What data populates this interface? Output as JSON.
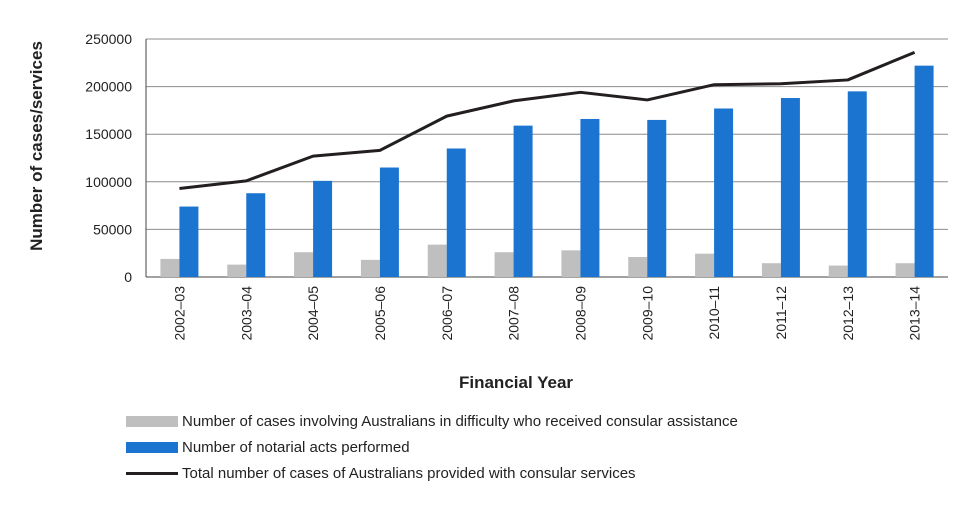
{
  "chart_data": {
    "type": "bar",
    "xlabel": "Financial Year",
    "ylabel": "Number of cases/services",
    "ylim": [
      0,
      250000
    ],
    "yticks": [
      0,
      50000,
      100000,
      150000,
      200000,
      250000
    ],
    "grid": true,
    "legend_position": "bottom",
    "categories": [
      "2002–03",
      "2003–04",
      "2004–05",
      "2005–06",
      "2006–07",
      "2007–08",
      "2008–09",
      "2009–10",
      "2010–11",
      "2011–12",
      "2012–13",
      "2013–14"
    ],
    "series": [
      {
        "name": "Number of cases involving Australians in difficulty who received consular assistance",
        "type": "bar",
        "color": "#bfbfbf",
        "values": [
          19000,
          13000,
          26000,
          18000,
          34000,
          26000,
          28000,
          21000,
          24500,
          14500,
          12000,
          14500
        ]
      },
      {
        "name": "Number of notarial acts performed",
        "type": "bar",
        "color": "#1b75d0",
        "values": [
          74000,
          88000,
          101000,
          115000,
          135000,
          159000,
          166000,
          165000,
          177000,
          188000,
          195000,
          222000
        ]
      },
      {
        "name": "Total number of cases of Australians provided with consular services",
        "type": "line",
        "color": "#231f20",
        "values": [
          93000,
          101000,
          127000,
          133000,
          169000,
          185000,
          194000,
          186000,
          202000,
          203000,
          207000,
          236000
        ]
      }
    ]
  }
}
